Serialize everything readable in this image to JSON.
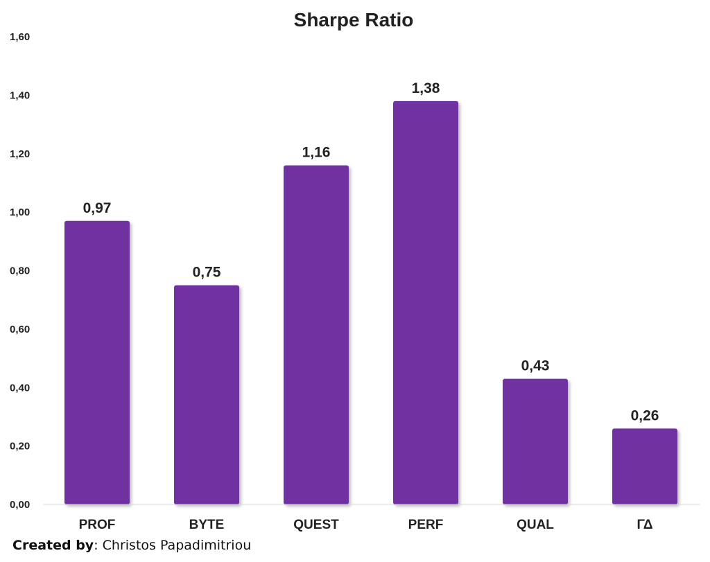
{
  "chart_data": {
    "type": "bar",
    "title": "Sharpe Ratio",
    "categories": [
      "PROF",
      "BYTE",
      "QUEST",
      "PERF",
      "QUAL",
      "ΓΔ"
    ],
    "values": [
      0.97,
      0.75,
      1.16,
      1.38,
      0.43,
      0.26
    ],
    "value_labels": [
      "0,97",
      "0,75",
      "1,16",
      "1,38",
      "0,43",
      "0,26"
    ],
    "ylim": [
      0,
      1.6
    ],
    "yticks": [
      0,
      0.2,
      0.4,
      0.6,
      0.8,
      1.0,
      1.2,
      1.4,
      1.6
    ],
    "ytick_labels": [
      "0,00",
      "0,20",
      "0,40",
      "0,60",
      "0,80",
      "1,00",
      "1,20",
      "1,40",
      "1,60"
    ],
    "xlabel": "",
    "ylabel": "",
    "grid": false,
    "legend": "none",
    "bar_color": "#7030A0"
  },
  "credit": {
    "label": "Created by",
    "name": ": Christos Papadimitriou"
  }
}
